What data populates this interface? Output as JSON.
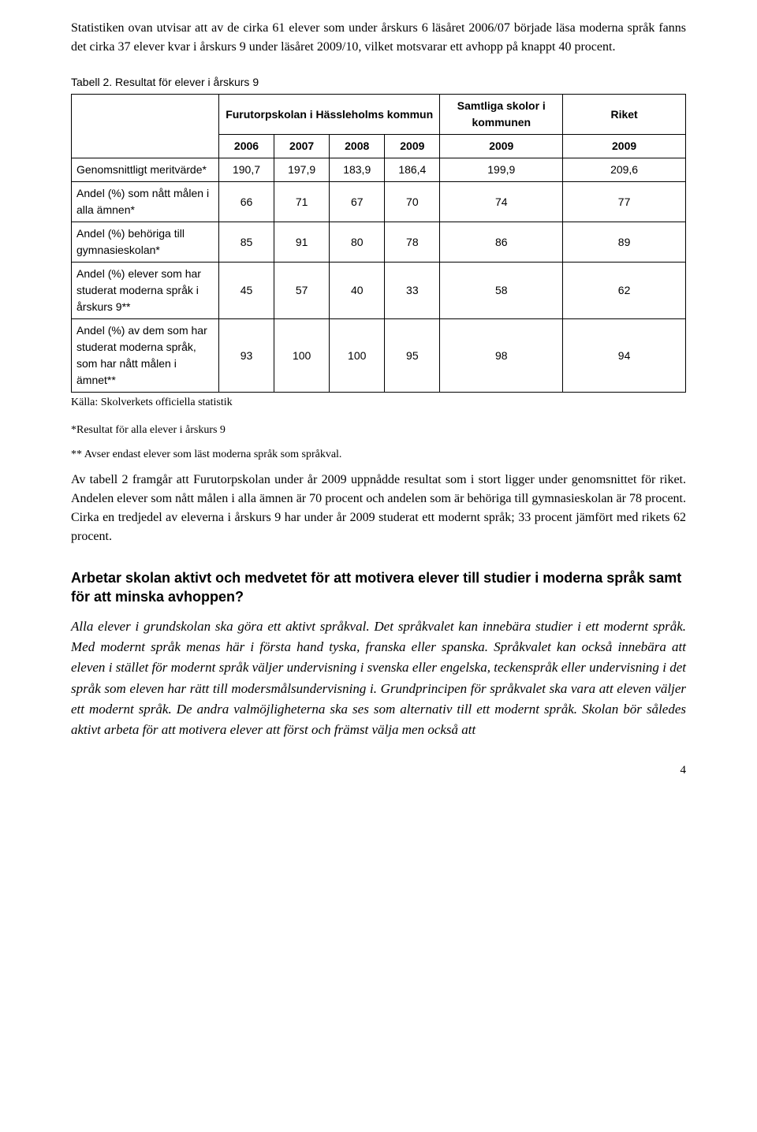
{
  "para_intro": "Statistiken ovan utvisar att av de cirka 61 elever som under årskurs 6 läsåret 2006/07 började läsa moderna språk fanns det cirka 37 elever kvar i årskurs 9 under läsåret 2009/10, vilket motsvarar ett avhopp på knappt 40 procent.",
  "table": {
    "caption": "Tabell 2. Resultat för elever i årskurs 9",
    "col_widths_pct": [
      24,
      9,
      9,
      9,
      9,
      20,
      20
    ],
    "header_row1": {
      "blank": "",
      "school": "Furutorpskolan i Hässleholms kommun",
      "kommunen": "Samtliga skolor i kommunen",
      "riket": "Riket"
    },
    "header_row2": [
      "2006",
      "2007",
      "2008",
      "2009",
      "2009",
      "2009"
    ],
    "rows": [
      {
        "label": "Genomsnittligt meritvärde*",
        "cells": [
          "190,7",
          "197,9",
          "183,9",
          "186,4",
          "199,9",
          "209,6"
        ]
      },
      {
        "label": "Andel (%) som nått målen i alla ämnen*",
        "cells": [
          "66",
          "71",
          "67",
          "70",
          "74",
          "77"
        ]
      },
      {
        "label": "Andel (%) behöriga till gymnasieskolan*",
        "cells": [
          "85",
          "91",
          "80",
          "78",
          "86",
          "89"
        ]
      },
      {
        "label": "Andel (%) elever som har studerat moderna språk i årskurs 9**",
        "cells": [
          "45",
          "57",
          "40",
          "33",
          "58",
          "62"
        ]
      },
      {
        "label": "Andel (%) av dem som har studerat moderna språk, som har nått målen i ämnet**",
        "cells": [
          "93",
          "100",
          "100",
          "95",
          "98",
          "94"
        ]
      }
    ],
    "source": "Källa: Skolverkets officiella statistik",
    "footnote1": "*Resultat för alla elever i årskurs 9",
    "footnote2": "** Avser endast elever som läst moderna språk som språkval."
  },
  "para_after_table": "Av tabell 2 framgår att Furutorpskolan under år 2009 uppnådde resultat som i stort ligger under genomsnittet för riket. Andelen elever som nått målen i alla ämnen är 70 procent och andelen som är behöriga till gymnasieskolan är 78 procent. Cirka en tredjedel av eleverna i årskurs 9 har under år 2009 studerat ett modernt språk; 33 procent jämfört med rikets 62 procent.",
  "heading2": "Arbetar skolan aktivt och medvetet för att motivera elever till studier i moderna språk samt för att minska avhoppen?",
  "para_italic": "Alla elever i grundskolan ska göra ett aktivt språkval. Det språkvalet kan innebära studier i ett modernt språk. Med modernt språk menas här i första hand tyska, franska eller spanska. Språkvalet kan också innebära att eleven i stället för modernt språk väljer undervisning i svenska eller engelska, teckenspråk eller undervisning i det språk som eleven har rätt till modersmålsundervisning i. Grundprincipen för språkvalet ska vara att eleven väljer ett modernt språk. De andra valmöjligheterna ska ses som alternativ till ett modernt språk. Skolan bör således aktivt arbeta för att motivera elever att först och främst välja men också att",
  "page_number": "4"
}
